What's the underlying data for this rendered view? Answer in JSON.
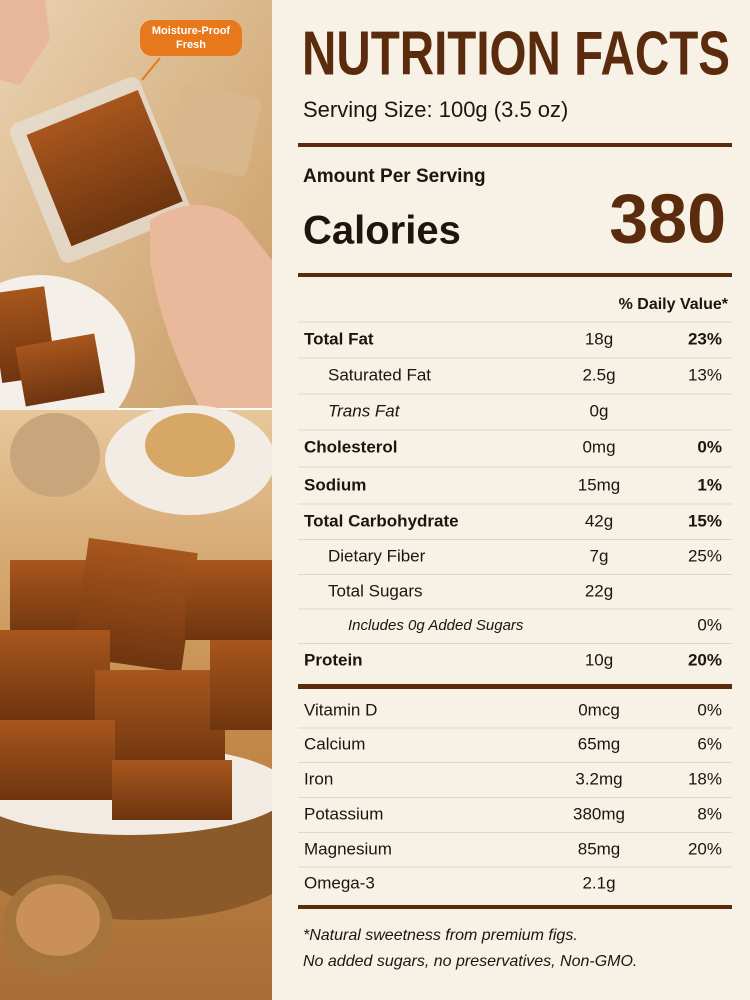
{
  "badge": {
    "lines": [
      "Moisture-Proof",
      "Fresh"
    ]
  },
  "nutrition": {
    "title": "NUTRITION FACTS",
    "serving_size": "Serving Size: 100g (3.5 oz)",
    "amount_per_serving": "Amount Per Serving",
    "calories_label": "Calories",
    "calories_value": "380",
    "daily_value_header": "% Daily Value*",
    "nutrients": [
      {
        "name": "Total Fat",
        "amount": "18g",
        "dv": "23%"
      },
      {
        "name": "Saturated Fat",
        "amount": "2.5g",
        "dv": "13%"
      },
      {
        "name": "Trans Fat",
        "amount": "0g"
      },
      {
        "name": "Cholesterol",
        "amount": "0mg",
        "dv": "0%"
      },
      {
        "name": "Sodium",
        "amount": "15mg",
        "dv": "1%"
      },
      {
        "name": "Total Carbohydrate",
        "amount": "42g",
        "dv": "15%"
      },
      {
        "name": "Dietary Fiber",
        "amount": "7g",
        "dv": "25%"
      },
      {
        "name": "Total Sugars",
        "amount": "22g"
      },
      {
        "name": "Includes 0g Added Sugars",
        "dv": "0%"
      },
      {
        "name": "Protein",
        "amount": "10g",
        "dv": "20%"
      }
    ],
    "vitamins": [
      {
        "name": "Vitamin D",
        "amount": "0mcg",
        "dv": "0%"
      },
      {
        "name": "Calcium",
        "amount": "65mg",
        "dv": "6%"
      },
      {
        "name": "Iron",
        "amount": "3.2mg",
        "dv": "18%"
      },
      {
        "name": "Potassium",
        "amount": "380mg",
        "dv": "8%"
      },
      {
        "name": "Magnesium",
        "amount": "85mg",
        "dv": "20%"
      },
      {
        "name": "Omega-3",
        "amount": "2.1g"
      }
    ],
    "footnote": [
      "*Natural sweetness from premium figs.",
      "No added sugars, no preservatives, Non-GMO."
    ]
  }
}
